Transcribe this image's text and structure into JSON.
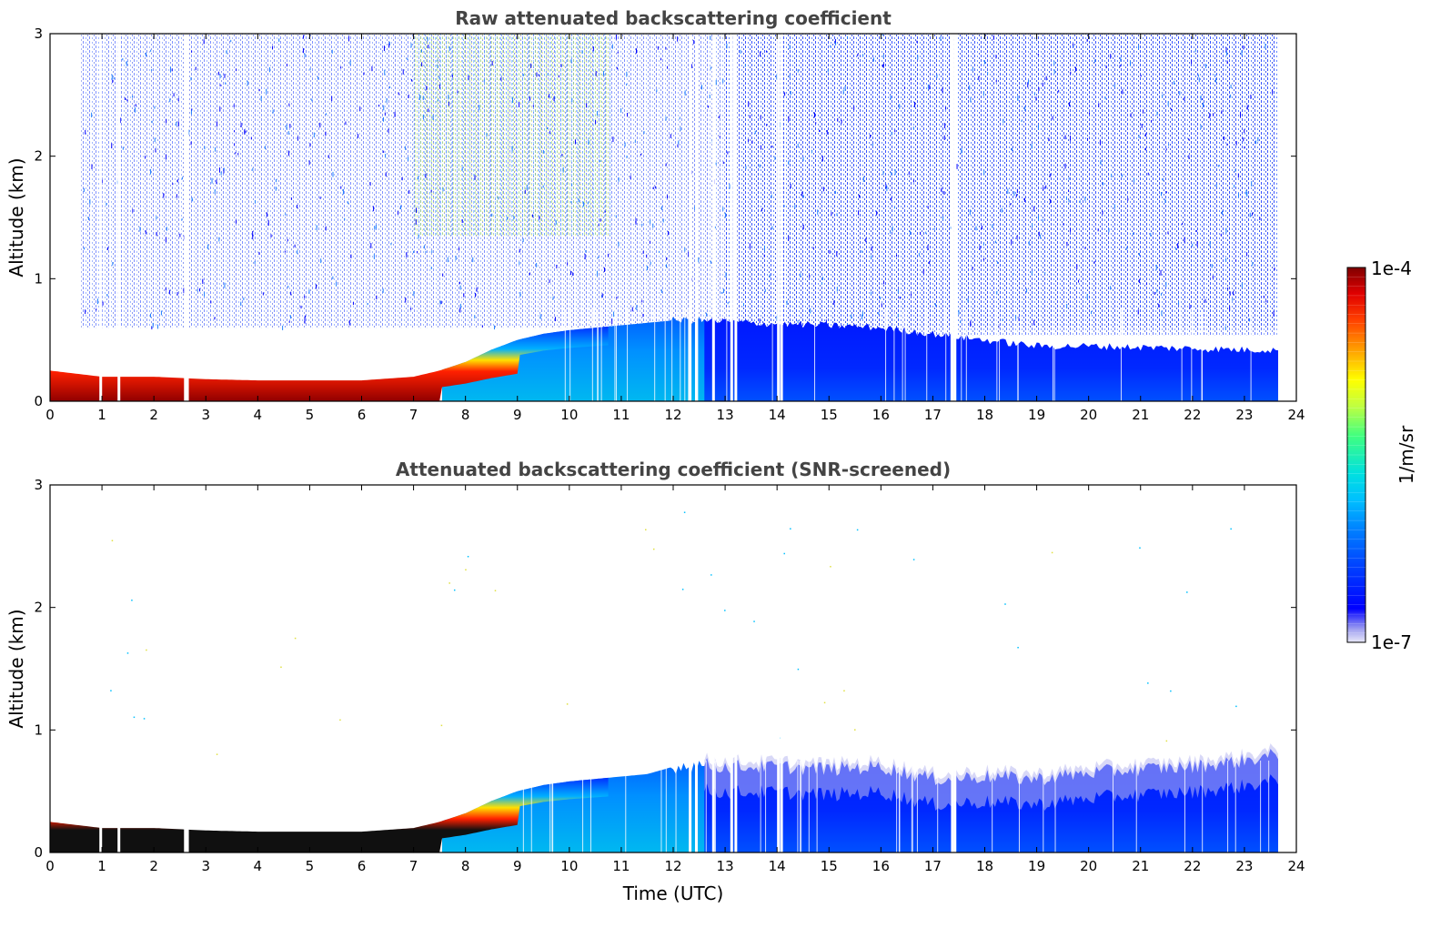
{
  "chart_data": [
    {
      "type": "heatmap",
      "title": "Raw attenuated backscattering coefficient",
      "xlabel": "",
      "ylabel": "Altitude (km)",
      "xlim": [
        0,
        24
      ],
      "ylim": [
        0,
        3
      ],
      "x_ticks": [
        "0",
        "1",
        "2",
        "3",
        "4",
        "5",
        "6",
        "7",
        "8",
        "9",
        "10",
        "11",
        "12",
        "13",
        "14",
        "15",
        "16",
        "17",
        "18",
        "19",
        "20",
        "21",
        "22",
        "23",
        "24"
      ],
      "y_ticks": [
        "0",
        "1",
        "2",
        "3"
      ],
      "data_end_hour": 23.65,
      "boundary_layer_top_km": {
        "x": [
          0,
          1,
          2,
          3,
          4,
          5,
          6,
          7,
          7.5,
          8,
          8.5,
          9,
          9.5,
          10,
          10.5,
          11,
          11.5,
          12,
          12.5,
          13,
          14,
          15,
          16,
          17,
          18,
          19,
          20,
          21,
          22,
          23,
          23.65
        ],
        "y": [
          0.25,
          0.2,
          0.2,
          0.18,
          0.17,
          0.17,
          0.17,
          0.2,
          0.25,
          0.32,
          0.42,
          0.5,
          0.55,
          0.58,
          0.6,
          0.62,
          0.64,
          0.66,
          0.66,
          0.65,
          0.63,
          0.62,
          0.6,
          0.55,
          0.5,
          0.45,
          0.45,
          0.44,
          0.43,
          0.42,
          0.42
        ]
      },
      "data_gaps_hour": [
        0.95,
        1.3,
        2.58,
        2.62,
        12.3,
        12.42,
        12.75,
        13.1,
        13.18,
        14.0,
        14.06,
        17.35,
        17.4
      ]
    },
    {
      "type": "heatmap",
      "title": "Attenuated backscattering coefficient (SNR-screened)",
      "xlabel": "Time (UTC)",
      "ylabel": "Altitude (km)",
      "xlim": [
        0,
        24
      ],
      "ylim": [
        0,
        3
      ],
      "x_ticks": [
        "0",
        "1",
        "2",
        "3",
        "4",
        "5",
        "6",
        "7",
        "8",
        "9",
        "10",
        "11",
        "12",
        "13",
        "14",
        "15",
        "16",
        "17",
        "18",
        "19",
        "20",
        "21",
        "22",
        "23",
        "24"
      ],
      "y_ticks": [
        "0",
        "1",
        "2",
        "3"
      ],
      "data_end_hour": 23.65,
      "boundary_layer_top_km": {
        "x": [
          0,
          1,
          2,
          3,
          4,
          5,
          6,
          7,
          7.5,
          8,
          8.5,
          9,
          9.5,
          10,
          10.5,
          11,
          11.5,
          12,
          12.5,
          13,
          14,
          15,
          16,
          17,
          18,
          19,
          20,
          21,
          22,
          23,
          23.65
        ],
        "y": [
          0.25,
          0.2,
          0.2,
          0.18,
          0.17,
          0.17,
          0.17,
          0.2,
          0.25,
          0.32,
          0.42,
          0.5,
          0.55,
          0.58,
          0.6,
          0.62,
          0.64,
          0.7,
          0.72,
          0.7,
          0.7,
          0.68,
          0.7,
          0.6,
          0.62,
          0.6,
          0.65,
          0.68,
          0.7,
          0.75,
          0.8
        ]
      },
      "data_gaps_hour": [
        0.95,
        1.3,
        2.58,
        2.62,
        12.3,
        12.42,
        12.75,
        13.1,
        13.18,
        14.0,
        14.06,
        17.35,
        17.4
      ]
    }
  ],
  "colorbar": {
    "label": "1/m/sr",
    "max_label": "1e-4",
    "min_label": "1e-7",
    "scale": "log",
    "range": [
      1e-07,
      0.0001
    ],
    "colormap": [
      "#e8e8f8",
      "#a0a0f0",
      "#0000ff",
      "#0040ff",
      "#0080ff",
      "#00c0ff",
      "#00e0e0",
      "#40ff80",
      "#c0ff40",
      "#ffff00",
      "#ffa000",
      "#ff4000",
      "#e00000",
      "#800000"
    ]
  }
}
